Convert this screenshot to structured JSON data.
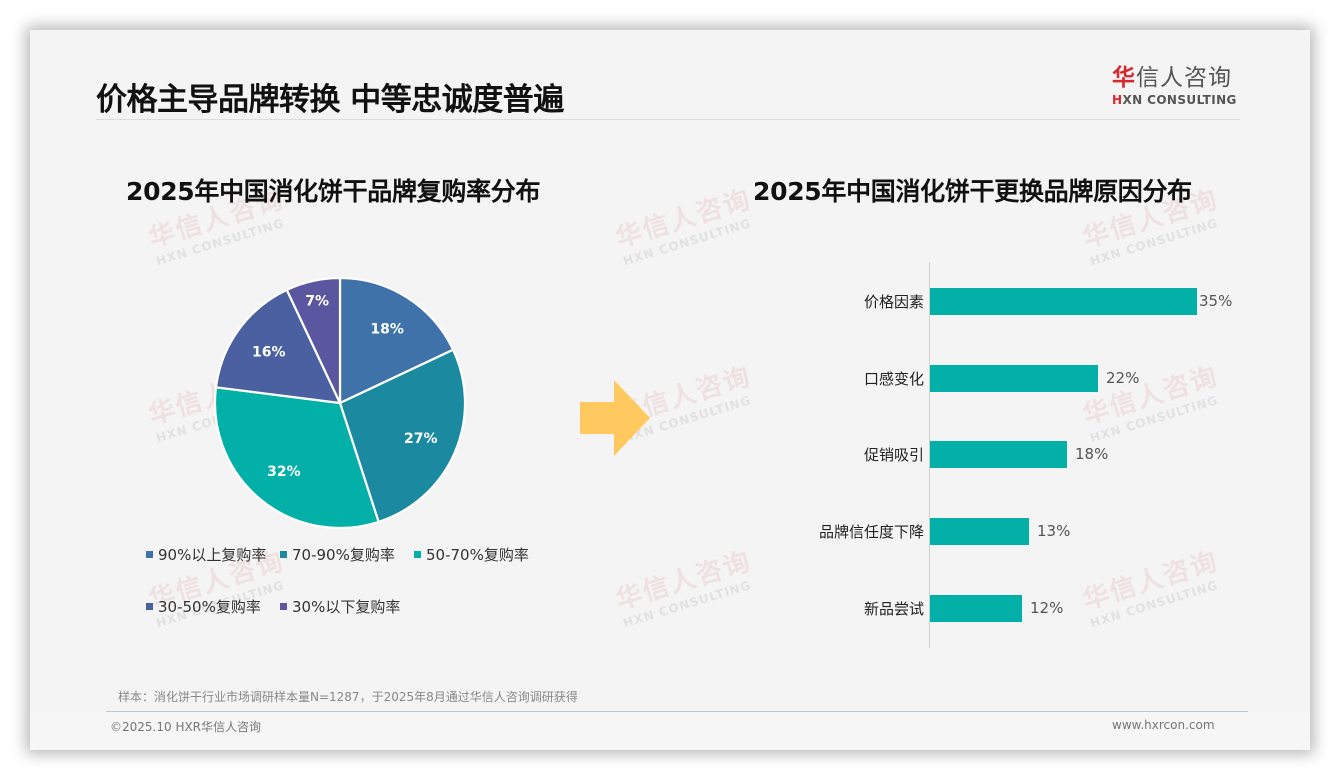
{
  "header": {
    "title": "价格主导品牌转换 中等忠诚度普遍",
    "logo_cn_first": "华",
    "logo_cn_rest": "信人咨询",
    "logo_en_first": "H",
    "logo_en_rest": "XN CONSULTING"
  },
  "watermark": {
    "cn": "华信人咨询",
    "en": "HXN CONSULTING"
  },
  "colors": {
    "pie": [
      "#3f72a8",
      "#1b8aa0",
      "#02b0a8",
      "#4a60a0",
      "#5b56a0"
    ],
    "bar": "#02b0a8",
    "arrow": "#ffc960",
    "logo_red": "#d7282f"
  },
  "chart_data": [
    {
      "type": "pie",
      "title": "2025年中国消化饼干品牌复购率分布",
      "categories": [
        "90%以上复购率",
        "70-90%复购率",
        "50-70%复购率",
        "30-50%复购率",
        "30%以下复购率"
      ],
      "values": [
        18,
        27,
        32,
        16,
        7
      ],
      "labels": [
        "18%",
        "27%",
        "32%",
        "16%",
        "7%"
      ],
      "legend_position": "bottom"
    },
    {
      "type": "bar",
      "orientation": "horizontal",
      "title": "2025年中国消化饼干更换品牌原因分布",
      "categories": [
        "价格因素",
        "口感变化",
        "促销吸引",
        "品牌信任度下降",
        "新品尝试"
      ],
      "values": [
        35,
        22,
        18,
        13,
        12
      ],
      "labels": [
        "35%",
        "22%",
        "18%",
        "13%",
        "12%"
      ],
      "xlabel": "",
      "ylabel": "",
      "grid": false
    }
  ],
  "footer": {
    "note": "样本：消化饼干行业市场调研样本量N=1287，于2025年8月通过华信人咨询调研获得",
    "copyright": "©2025.10 HXR华信人咨询",
    "website": "www.hxrcon.com"
  }
}
